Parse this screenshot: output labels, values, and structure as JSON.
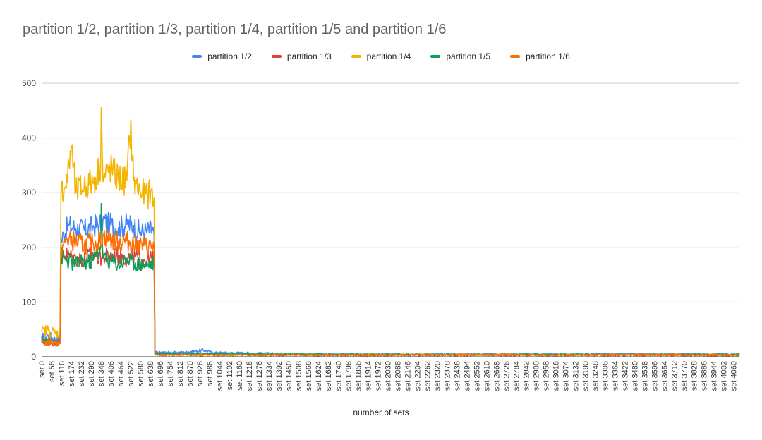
{
  "chart_data": {
    "type": "line",
    "title": "partition 1/2, partition 1/3, partition 1/4, partition 1/5 and partition 1/6",
    "xlabel": "number of sets",
    "ylabel": "",
    "ylim": [
      0,
      500
    ],
    "y_ticks": [
      0,
      100,
      200,
      300,
      400,
      500
    ],
    "grid": true,
    "legend_position": "top-center",
    "x_tick_labels": [
      "set 0",
      "set 58",
      "set 116",
      "set 174",
      "set 232",
      "set 290",
      "set 348",
      "set 406",
      "set 464",
      "set 522",
      "set 580",
      "set 638",
      "set 696",
      "set 754",
      "set 812",
      "set 870",
      "set 928",
      "set 986",
      "set 1044",
      "set 1102",
      "set 1160",
      "set 1218",
      "set 1276",
      "set 1334",
      "set 1392",
      "set 1450",
      "set 1508",
      "set 1566",
      "set 1624",
      "set 1682",
      "set 1740",
      "set 1798",
      "set 1856",
      "set 1914",
      "set 1972",
      "set 2030",
      "set 2088",
      "set 2146",
      "set 2204",
      "set 2262",
      "set 2320",
      "set 2378",
      "set 2436",
      "set 2494",
      "set 2552",
      "set 2610",
      "set 2668",
      "set 2726",
      "set 2784",
      "set 2842",
      "set 2900",
      "set 2958",
      "set 3016",
      "set 3074",
      "set 3132",
      "set 3190",
      "set 3248",
      "set 3306",
      "set 3364",
      "set 3422",
      "set 3480",
      "set 3538",
      "set 3596",
      "set 3654",
      "set 3712",
      "set 3770",
      "set 3828",
      "set 3886",
      "set 3944",
      "set 4002",
      "set 4060"
    ],
    "x_max": 4095,
    "series": [
      {
        "name": "partition 1/2",
        "color": "#4285f4",
        "points": [
          [
            0,
            35
          ],
          [
            40,
            38
          ],
          [
            90,
            30
          ],
          [
            108,
            32
          ],
          [
            114,
            210
          ],
          [
            130,
            225
          ],
          [
            160,
            240
          ],
          [
            200,
            235
          ],
          [
            250,
            232
          ],
          [
            300,
            238
          ],
          [
            346,
            244
          ],
          [
            360,
            250
          ],
          [
            400,
            242
          ],
          [
            450,
            236
          ],
          [
            500,
            242
          ],
          [
            540,
            240
          ],
          [
            580,
            228
          ],
          [
            620,
            230
          ],
          [
            650,
            232
          ],
          [
            660,
            222
          ],
          [
            665,
            8
          ],
          [
            800,
            8
          ],
          [
            900,
            10
          ],
          [
            950,
            12
          ],
          [
            1000,
            8
          ],
          [
            1200,
            7
          ],
          [
            1500,
            5
          ],
          [
            2000,
            5
          ],
          [
            2500,
            5
          ],
          [
            3000,
            5
          ],
          [
            3500,
            5
          ],
          [
            4095,
            5
          ]
        ]
      },
      {
        "name": "partition 1/3",
        "color": "#db4437",
        "points": [
          [
            0,
            28
          ],
          [
            60,
            26
          ],
          [
            108,
            25
          ],
          [
            114,
            190
          ],
          [
            150,
            185
          ],
          [
            200,
            180
          ],
          [
            250,
            178
          ],
          [
            300,
            188
          ],
          [
            346,
            182
          ],
          [
            400,
            184
          ],
          [
            450,
            186
          ],
          [
            500,
            180
          ],
          [
            550,
            183
          ],
          [
            600,
            178
          ],
          [
            650,
            180
          ],
          [
            660,
            185
          ],
          [
            665,
            4
          ],
          [
            1000,
            4
          ],
          [
            2000,
            3
          ],
          [
            3000,
            3
          ],
          [
            4095,
            3
          ]
        ]
      },
      {
        "name": "partition 1/4",
        "color": "#f4b400",
        "points": [
          [
            0,
            45
          ],
          [
            40,
            48
          ],
          [
            90,
            42
          ],
          [
            108,
            40
          ],
          [
            114,
            300
          ],
          [
            150,
            320
          ],
          [
            174,
            385
          ],
          [
            200,
            300
          ],
          [
            250,
            312
          ],
          [
            300,
            318
          ],
          [
            346,
            350
          ],
          [
            350,
            455
          ],
          [
            360,
            320
          ],
          [
            400,
            345
          ],
          [
            450,
            325
          ],
          [
            500,
            322
          ],
          [
            522,
            420
          ],
          [
            540,
            322
          ],
          [
            580,
            300
          ],
          [
            620,
            296
          ],
          [
            650,
            300
          ],
          [
            660,
            290
          ],
          [
            665,
            6
          ],
          [
            1000,
            5
          ],
          [
            2000,
            4
          ],
          [
            3000,
            4
          ],
          [
            4095,
            4
          ]
        ]
      },
      {
        "name": "partition 1/5",
        "color": "#0f9d58",
        "points": [
          [
            0,
            30
          ],
          [
            60,
            28
          ],
          [
            108,
            30
          ],
          [
            114,
            185
          ],
          [
            150,
            175
          ],
          [
            200,
            170
          ],
          [
            250,
            172
          ],
          [
            300,
            176
          ],
          [
            346,
            200
          ],
          [
            350,
            280
          ],
          [
            360,
            180
          ],
          [
            400,
            175
          ],
          [
            450,
            170
          ],
          [
            500,
            178
          ],
          [
            550,
            172
          ],
          [
            600,
            168
          ],
          [
            650,
            170
          ],
          [
            660,
            178
          ],
          [
            665,
            6
          ],
          [
            1000,
            6
          ],
          [
            1200,
            5
          ],
          [
            2000,
            4
          ],
          [
            3000,
            4
          ],
          [
            4095,
            4
          ]
        ]
      },
      {
        "name": "partition 1/6",
        "color": "#ff6d00",
        "points": [
          [
            0,
            25
          ],
          [
            60,
            27
          ],
          [
            108,
            24
          ],
          [
            114,
            195
          ],
          [
            150,
            215
          ],
          [
            200,
            210
          ],
          [
            250,
            205
          ],
          [
            300,
            208
          ],
          [
            346,
            212
          ],
          [
            360,
            222
          ],
          [
            400,
            215
          ],
          [
            450,
            210
          ],
          [
            500,
            212
          ],
          [
            550,
            205
          ],
          [
            600,
            203
          ],
          [
            650,
            202
          ],
          [
            660,
            205
          ],
          [
            665,
            3
          ],
          [
            1000,
            3
          ],
          [
            2000,
            3
          ],
          [
            2600,
            4
          ],
          [
            3000,
            3
          ],
          [
            3500,
            4
          ],
          [
            4095,
            3
          ]
        ]
      }
    ]
  }
}
